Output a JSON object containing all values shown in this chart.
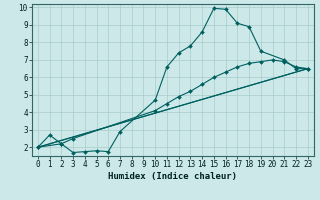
{
  "xlabel": "Humidex (Indice chaleur)",
  "bg_color": "#cce8e8",
  "grid_color": "#aacccc",
  "line_color": "#006060",
  "xlim": [
    -0.5,
    23.5
  ],
  "ylim": [
    1.5,
    10.2
  ],
  "lines": [
    {
      "x": [
        0,
        1,
        2,
        3,
        4,
        5,
        6,
        7,
        10,
        11,
        12,
        13,
        14,
        15,
        16,
        17,
        18,
        19,
        21,
        22,
        23
      ],
      "y": [
        2.0,
        2.7,
        2.2,
        1.7,
        1.75,
        1.8,
        1.75,
        2.9,
        4.7,
        6.6,
        7.4,
        7.8,
        8.6,
        9.95,
        9.9,
        9.1,
        8.9,
        7.5,
        7.0,
        6.5,
        6.5
      ]
    },
    {
      "x": [
        0,
        2,
        3,
        10,
        11,
        12,
        13,
        14,
        15,
        16,
        17,
        18,
        19,
        20,
        21,
        22,
        23
      ],
      "y": [
        2.0,
        2.2,
        2.5,
        4.1,
        4.5,
        4.9,
        5.2,
        5.6,
        6.0,
        6.3,
        6.6,
        6.8,
        6.9,
        7.0,
        6.9,
        6.6,
        6.5
      ]
    },
    {
      "x": [
        0,
        23
      ],
      "y": [
        2.0,
        6.5
      ]
    },
    {
      "x": [
        0,
        23
      ],
      "y": [
        2.0,
        6.5
      ]
    }
  ],
  "line1_x": [
    0,
    1,
    2,
    3,
    4,
    5,
    6,
    7,
    10,
    11,
    12,
    13,
    14,
    15,
    16,
    17,
    18,
    19,
    21,
    22,
    23
  ],
  "line1_y": [
    2.0,
    2.7,
    2.2,
    1.7,
    1.75,
    1.8,
    1.75,
    2.9,
    4.7,
    6.6,
    7.4,
    7.8,
    8.6,
    9.95,
    9.9,
    9.1,
    8.9,
    7.5,
    7.0,
    6.5,
    6.5
  ],
  "line2_x": [
    0,
    2,
    3,
    10,
    11,
    12,
    13,
    14,
    15,
    16,
    17,
    18,
    19,
    20,
    21,
    22,
    23
  ],
  "line2_y": [
    2.0,
    2.2,
    2.5,
    4.1,
    4.5,
    4.9,
    5.2,
    5.6,
    6.0,
    6.3,
    6.6,
    6.8,
    6.9,
    7.0,
    6.9,
    6.6,
    6.5
  ],
  "line3_x": [
    0,
    23
  ],
  "line3_y": [
    2.0,
    6.5
  ],
  "line4_x": [
    0,
    23
  ],
  "line4_y": [
    2.0,
    6.5
  ],
  "xticks": [
    0,
    1,
    2,
    3,
    4,
    5,
    6,
    7,
    8,
    9,
    10,
    11,
    12,
    13,
    14,
    15,
    16,
    17,
    18,
    19,
    20,
    21,
    22,
    23
  ],
  "yticks": [
    2,
    3,
    4,
    5,
    6,
    7,
    8,
    9,
    10
  ],
  "marker": "D",
  "markersize": 2.0,
  "linewidth": 0.8,
  "label_fontsize": 6.5,
  "tick_fontsize": 5.5
}
